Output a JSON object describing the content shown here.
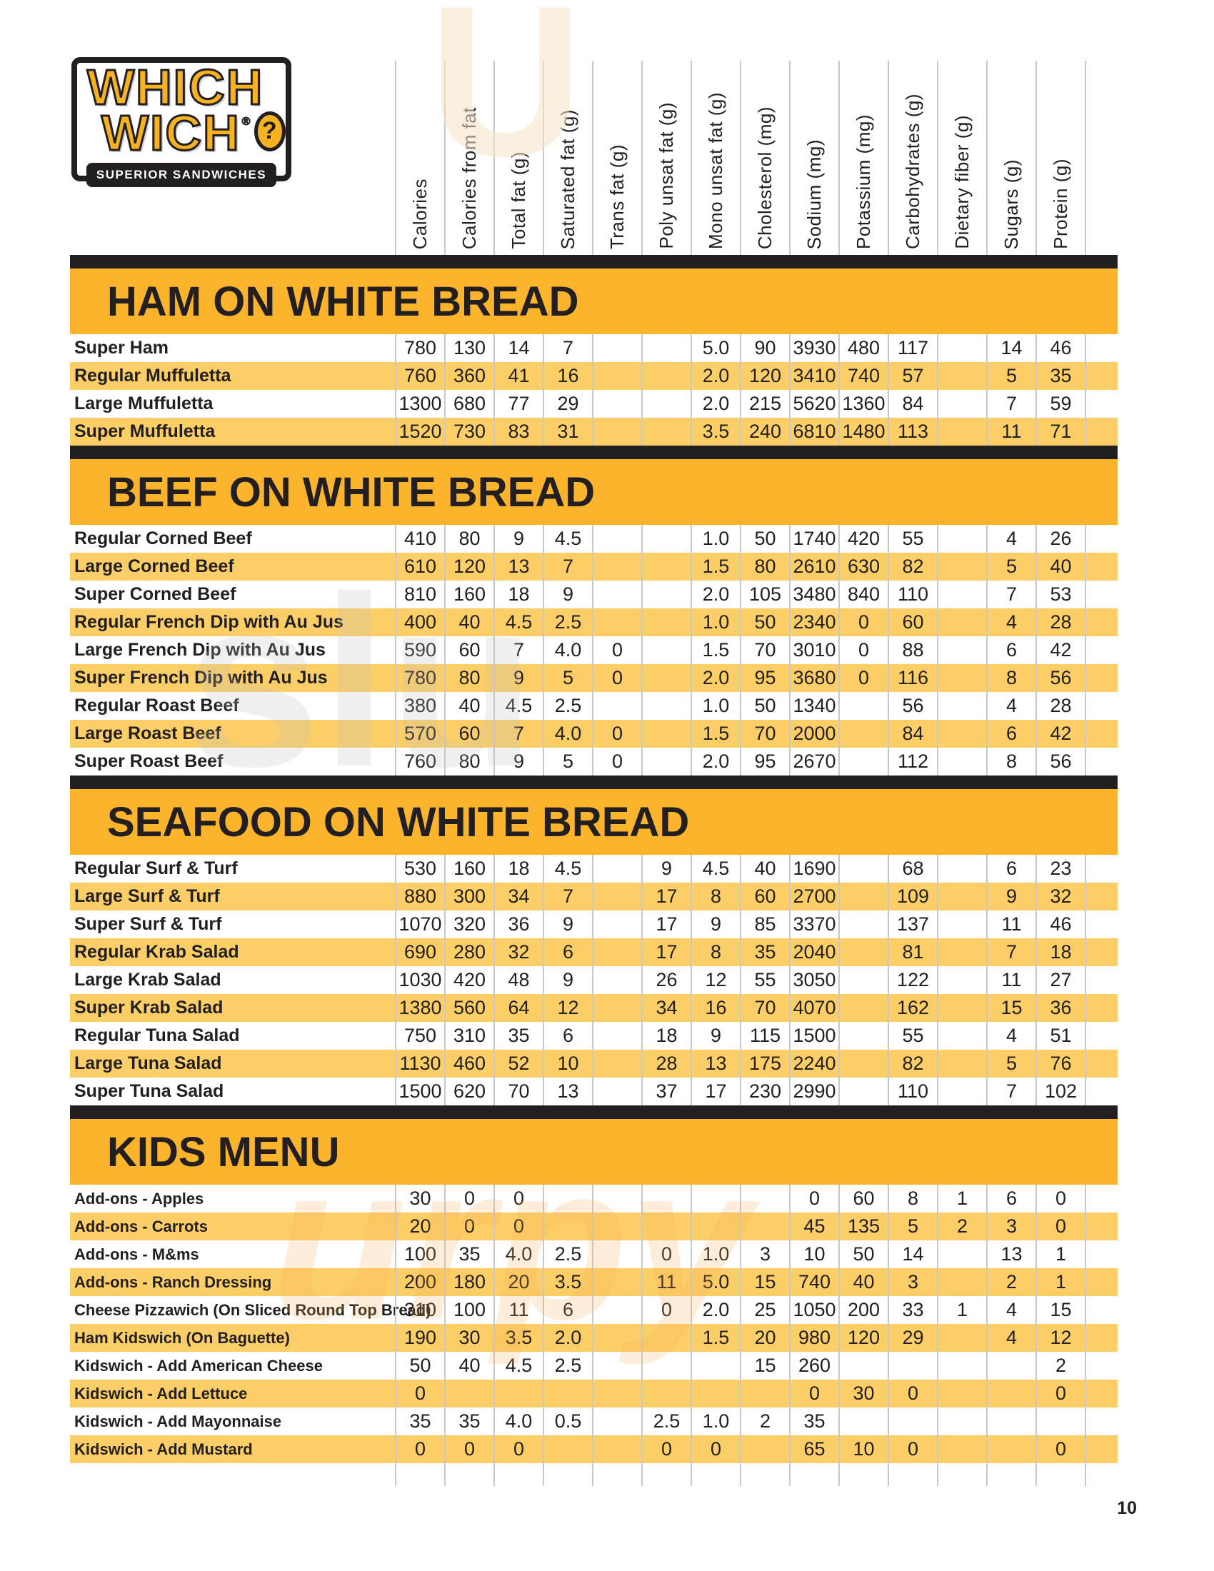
{
  "page": {
    "number": "10"
  },
  "logo": {
    "line1": "WHICH",
    "line2": "WICH",
    "registered": "®",
    "question": "?",
    "banner": "SUPERIOR SANDWICHES"
  },
  "watermark": {
    "top": "U",
    "mid": "slu",
    "bot": "urpy"
  },
  "colors": {
    "band_yellow": "#FBB42C",
    "stripe_yellow": "#FCCE68",
    "bar_black": "#231F20",
    "divider_gray": "#C9C9C9",
    "logo_gold": "#F6B221"
  },
  "columns": [
    "Calories",
    "Calories from fat",
    "Total fat (g)",
    "Saturated fat (g)",
    "Trans fat (g)",
    "Poly unsat fat (g)",
    "Mono unsat fat (g)",
    "Cholesterol (mg)",
    "Sodium (mg)",
    "Potassium (mg)",
    "Carbohydrates (g)",
    "Dietary fiber (g)",
    "Sugars (g)",
    "Protein (g)"
  ],
  "sections": [
    {
      "title": "HAM ON WHITE BREAD",
      "rows": [
        {
          "label": "Super Ham",
          "values": [
            "780",
            "130",
            "14",
            "7",
            "",
            "",
            "5.0",
            "90",
            "3930",
            "480",
            "117",
            "",
            "14",
            "46"
          ]
        },
        {
          "label": "Regular Muffuletta",
          "values": [
            "760",
            "360",
            "41",
            "16",
            "",
            "",
            "2.0",
            "120",
            "3410",
            "740",
            "57",
            "",
            "5",
            "35"
          ]
        },
        {
          "label": "Large Muffuletta",
          "values": [
            "1300",
            "680",
            "77",
            "29",
            "",
            "",
            "2.0",
            "215",
            "5620",
            "1360",
            "84",
            "",
            "7",
            "59"
          ]
        },
        {
          "label": "Super Muffuletta",
          "values": [
            "1520",
            "730",
            "83",
            "31",
            "",
            "",
            "3.5",
            "240",
            "6810",
            "1480",
            "113",
            "",
            "11",
            "71"
          ]
        }
      ]
    },
    {
      "title": "BEEF ON WHITE BREAD",
      "rows": [
        {
          "label": "Regular Corned Beef",
          "values": [
            "410",
            "80",
            "9",
            "4.5",
            "",
            "",
            "1.0",
            "50",
            "1740",
            "420",
            "55",
            "",
            "4",
            "26"
          ]
        },
        {
          "label": "Large Corned Beef",
          "values": [
            "610",
            "120",
            "13",
            "7",
            "",
            "",
            "1.5",
            "80",
            "2610",
            "630",
            "82",
            "",
            "5",
            "40"
          ]
        },
        {
          "label": "Super Corned Beef",
          "values": [
            "810",
            "160",
            "18",
            "9",
            "",
            "",
            "2.0",
            "105",
            "3480",
            "840",
            "110",
            "",
            "7",
            "53"
          ]
        },
        {
          "label": "Regular French Dip with Au Jus",
          "values": [
            "400",
            "40",
            "4.5",
            "2.5",
            "",
            "",
            "1.0",
            "50",
            "2340",
            "0",
            "60",
            "",
            "4",
            "28"
          ]
        },
        {
          "label": "Large French Dip with Au Jus",
          "values": [
            "590",
            "60",
            "7",
            "4.0",
            "0",
            "",
            "1.5",
            "70",
            "3010",
            "0",
            "88",
            "",
            "6",
            "42"
          ]
        },
        {
          "label": "Super French Dip with Au Jus",
          "values": [
            "780",
            "80",
            "9",
            "5",
            "0",
            "",
            "2.0",
            "95",
            "3680",
            "0",
            "116",
            "",
            "8",
            "56"
          ]
        },
        {
          "label": "Regular Roast Beef",
          "values": [
            "380",
            "40",
            "4.5",
            "2.5",
            "",
            "",
            "1.0",
            "50",
            "1340",
            "",
            "56",
            "",
            "4",
            "28"
          ]
        },
        {
          "label": "Large Roast Beef",
          "values": [
            "570",
            "60",
            "7",
            "4.0",
            "0",
            "",
            "1.5",
            "70",
            "2000",
            "",
            "84",
            "",
            "6",
            "42"
          ]
        },
        {
          "label": "Super Roast Beef",
          "values": [
            "760",
            "80",
            "9",
            "5",
            "0",
            "",
            "2.0",
            "95",
            "2670",
            "",
            "112",
            "",
            "8",
            "56"
          ]
        }
      ]
    },
    {
      "title": "SEAFOOD ON WHITE BREAD",
      "rows": [
        {
          "label": "Regular Surf & Turf",
          "values": [
            "530",
            "160",
            "18",
            "4.5",
            "",
            "9",
            "4.5",
            "40",
            "1690",
            "",
            "68",
            "",
            "6",
            "23"
          ]
        },
        {
          "label": "Large Surf & Turf",
          "values": [
            "880",
            "300",
            "34",
            "7",
            "",
            "17",
            "8",
            "60",
            "2700",
            "",
            "109",
            "",
            "9",
            "32"
          ]
        },
        {
          "label": "Super Surf & Turf",
          "values": [
            "1070",
            "320",
            "36",
            "9",
            "",
            "17",
            "9",
            "85",
            "3370",
            "",
            "137",
            "",
            "11",
            "46"
          ]
        },
        {
          "label": "Regular Krab Salad",
          "values": [
            "690",
            "280",
            "32",
            "6",
            "",
            "17",
            "8",
            "35",
            "2040",
            "",
            "81",
            "",
            "7",
            "18"
          ]
        },
        {
          "label": "Large Krab Salad",
          "values": [
            "1030",
            "420",
            "48",
            "9",
            "",
            "26",
            "12",
            "55",
            "3050",
            "",
            "122",
            "",
            "11",
            "27"
          ]
        },
        {
          "label": "Super Krab Salad",
          "values": [
            "1380",
            "560",
            "64",
            "12",
            "",
            "34",
            "16",
            "70",
            "4070",
            "",
            "162",
            "",
            "15",
            "36"
          ]
        },
        {
          "label": "Regular Tuna Salad",
          "values": [
            "750",
            "310",
            "35",
            "6",
            "",
            "18",
            "9",
            "115",
            "1500",
            "",
            "55",
            "",
            "4",
            "51"
          ]
        },
        {
          "label": "Large Tuna Salad",
          "values": [
            "1130",
            "460",
            "52",
            "10",
            "",
            "28",
            "13",
            "175",
            "2240",
            "",
            "82",
            "",
            "5",
            "76"
          ]
        },
        {
          "label": "Super Tuna Salad",
          "values": [
            "1500",
            "620",
            "70",
            "13",
            "",
            "37",
            "17",
            "230",
            "2990",
            "",
            "110",
            "",
            "7",
            "102"
          ]
        }
      ]
    },
    {
      "title": "KIDS MENU",
      "kids": true,
      "rows": [
        {
          "label": "Add-ons - Apples",
          "values": [
            "30",
            "0",
            "0",
            "",
            "",
            "",
            "",
            "",
            "0",
            "60",
            "8",
            "1",
            "6",
            "0"
          ]
        },
        {
          "label": "Add-ons - Carrots",
          "values": [
            "20",
            "0",
            "0",
            "",
            "",
            "",
            "",
            "",
            "45",
            "135",
            "5",
            "2",
            "3",
            "0"
          ]
        },
        {
          "label": "Add-ons - M&ms",
          "values": [
            "100",
            "35",
            "4.0",
            "2.5",
            "",
            "0",
            "1.0",
            "3",
            "10",
            "50",
            "14",
            "",
            "13",
            "1"
          ]
        },
        {
          "label": "Add-ons - Ranch Dressing",
          "values": [
            "200",
            "180",
            "20",
            "3.5",
            "",
            "11",
            "5.0",
            "15",
            "740",
            "40",
            "3",
            "",
            "2",
            "1"
          ]
        },
        {
          "label": "Cheese Pizzawich (On Sliced Round Top Bread)",
          "values": [
            "310",
            "100",
            "11",
            "6",
            "",
            "0",
            "2.0",
            "25",
            "1050",
            "200",
            "33",
            "1",
            "4",
            "15"
          ]
        },
        {
          "label": "Ham Kidswich (On Baguette)",
          "values": [
            "190",
            "30",
            "3.5",
            "2.0",
            "",
            "",
            "1.5",
            "20",
            "980",
            "120",
            "29",
            "",
            "4",
            "12"
          ]
        },
        {
          "label": "Kidswich - Add American Cheese",
          "values": [
            "50",
            "40",
            "4.5",
            "2.5",
            "",
            "",
            "",
            "15",
            "260",
            "",
            "",
            "",
            "",
            "2"
          ]
        },
        {
          "label": "Kidswich - Add Lettuce",
          "values": [
            "0",
            "",
            "",
            "",
            "",
            "",
            "",
            "",
            "0",
            "30",
            "0",
            "",
            "",
            "0"
          ]
        },
        {
          "label": "Kidswich - Add Mayonnaise",
          "values": [
            "35",
            "35",
            "4.0",
            "0.5",
            "",
            "2.5",
            "1.0",
            "2",
            "35",
            "",
            "",
            "",
            "",
            ""
          ]
        },
        {
          "label": "Kidswich - Add Mustard",
          "values": [
            "0",
            "0",
            "0",
            "",
            "",
            "0",
            "0",
            "",
            "65",
            "10",
            "0",
            "",
            "",
            "0"
          ]
        }
      ]
    }
  ]
}
